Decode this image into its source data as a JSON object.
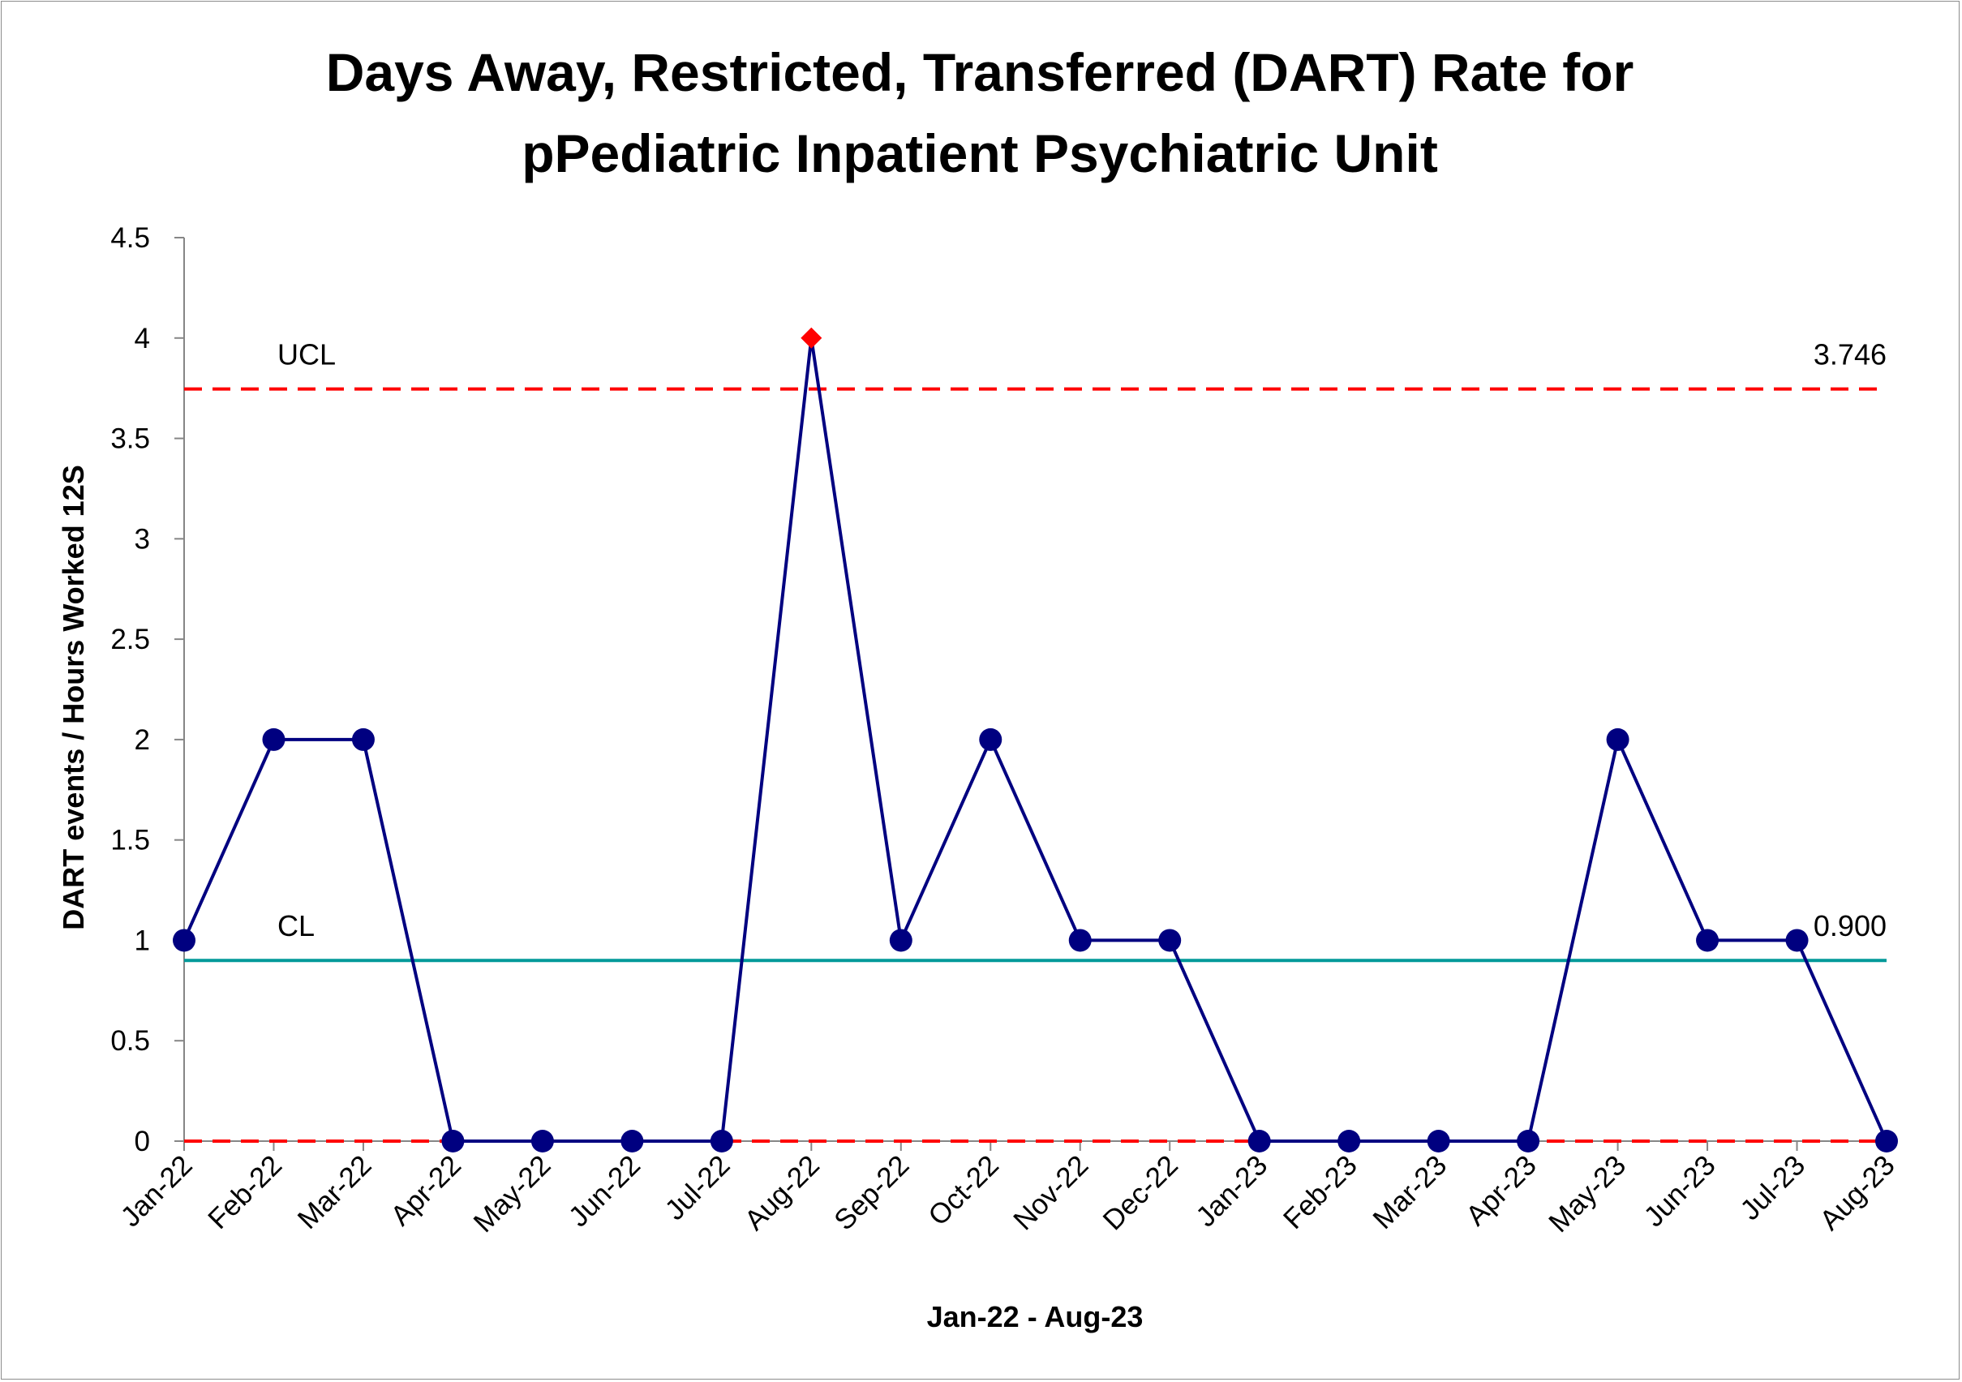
{
  "chart_data": {
    "type": "line",
    "title_lines": [
      "Days Away, Restricted, Transferred (DART) Rate for",
      "pPediatric Inpatient Psychiatric Unit"
    ],
    "xlabel": "Jan-22 - Aug-23",
    "ylabel": "DART events / Hours Worked 12S",
    "ylim": [
      0,
      4.5
    ],
    "y_ticks": [
      "0",
      "0.5",
      "1",
      "1.5",
      "2",
      "2.5",
      "3",
      "3.5",
      "4",
      "4.5"
    ],
    "y_tick_values": [
      0,
      0.5,
      1,
      1.5,
      2,
      2.5,
      3,
      3.5,
      4,
      4.5
    ],
    "categories": [
      "Jan-22",
      "Feb-22",
      "Mar-22",
      "Apr-22",
      "May-22",
      "Jun-22",
      "Jul-22",
      "Aug-22",
      "Sep-22",
      "Oct-22",
      "Nov-22",
      "Dec-22",
      "Jan-23",
      "Feb-23",
      "Mar-23",
      "Apr-23",
      "May-23",
      "Jun-23",
      "Jul-23",
      "Aug-23"
    ],
    "series": [
      {
        "values": [
          1,
          2,
          2,
          0,
          0,
          0,
          0,
          4,
          1,
          2,
          1,
          1,
          0,
          0,
          0,
          0,
          2,
          1,
          1,
          0
        ],
        "color": "#000080",
        "out_of_control_index": 7,
        "out_of_control_color": "#ff0000"
      }
    ],
    "control_limits": {
      "ucl": {
        "label": "UCL",
        "value": 3.746,
        "value_text": "3.746",
        "color": "#ff0000"
      },
      "cl": {
        "label": "CL",
        "value": 0.9,
        "value_text": "0.900",
        "color": "#009999"
      },
      "lcl": {
        "value": 0,
        "color": "#ff0000"
      }
    },
    "grid": false,
    "legend": "none"
  }
}
